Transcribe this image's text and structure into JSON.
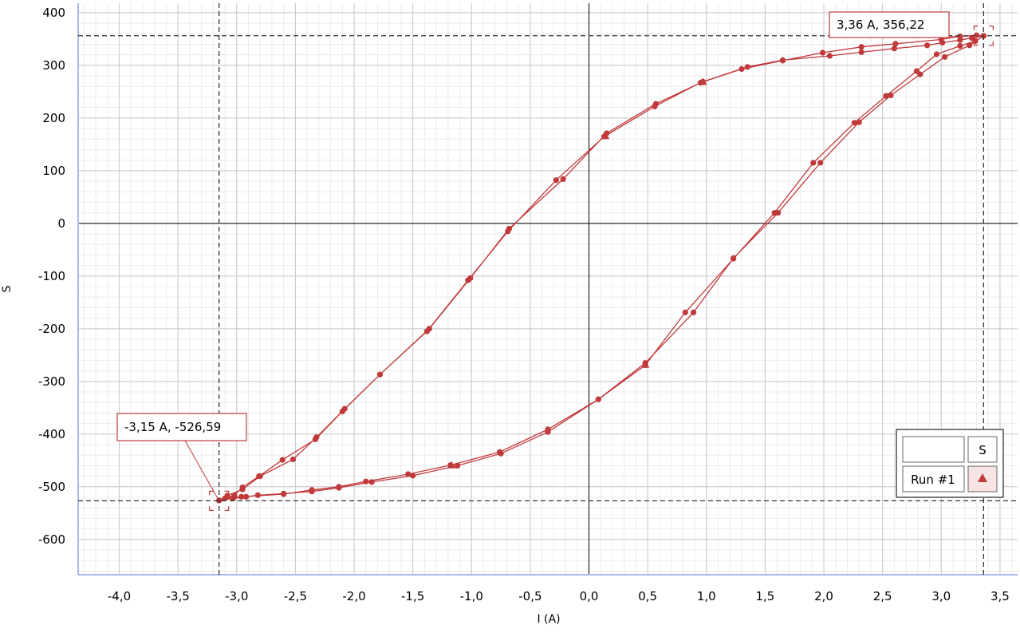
{
  "chart_data": {
    "type": "line",
    "title": "",
    "xlabel": "I (A)",
    "ylabel": "S",
    "xlim": [
      -4.35,
      3.65
    ],
    "ylim": [
      -667,
      418
    ],
    "x_ticks": [
      "-4,0",
      "-3,5",
      "-3,0",
      "-2,5",
      "-2,0",
      "-1,5",
      "-1,0",
      "-0,5",
      "0,0",
      "0,5",
      "1,0",
      "1,5",
      "2,0",
      "2,5",
      "3,0",
      "3,5"
    ],
    "x_tick_values": [
      -4.0,
      -3.5,
      -3.0,
      -2.5,
      -2.0,
      -1.5,
      -1.0,
      -0.5,
      0.0,
      0.5,
      1.0,
      1.5,
      2.0,
      2.5,
      3.0,
      3.5
    ],
    "y_ticks": [
      "400",
      "300",
      "200",
      "100",
      "0",
      "-100",
      "-200",
      "-300",
      "-400",
      "-500",
      "-600"
    ],
    "y_tick_values": [
      400,
      300,
      200,
      100,
      0,
      -100,
      -200,
      -300,
      -400,
      -500,
      -600
    ],
    "grid": true,
    "series_color": "#c0393b",
    "series": [
      {
        "name": "Run #1",
        "points": [
          [
            3.36,
            356
          ],
          [
            3.26,
            352
          ],
          [
            3.16,
            348
          ],
          [
            3.01,
            343
          ],
          [
            2.88,
            338
          ],
          [
            2.6,
            332
          ],
          [
            2.32,
            325
          ],
          [
            2.05,
            318
          ],
          [
            1.65,
            310
          ],
          [
            1.35,
            297
          ],
          [
            0.97,
            269
          ],
          [
            0.57,
            227
          ],
          [
            0.15,
            171
          ],
          [
            -0.22,
            84
          ],
          [
            -0.68,
            -10
          ],
          [
            -1.01,
            -104
          ],
          [
            -1.36,
            -200
          ],
          [
            -1.78,
            -287
          ],
          [
            -2.08,
            -352
          ],
          [
            -2.32,
            -406
          ],
          [
            -2.52,
            -448
          ],
          [
            -2.8,
            -480
          ],
          [
            -2.95,
            -505
          ],
          [
            -3.08,
            -517
          ],
          [
            -3.15,
            -526
          ],
          [
            -3.03,
            -522
          ],
          [
            -2.92,
            -519
          ],
          [
            -2.82,
            -516
          ],
          [
            -2.6,
            -513
          ],
          [
            -2.36,
            -509
          ],
          [
            -2.13,
            -502
          ],
          [
            -1.85,
            -491
          ],
          [
            -1.5,
            -479
          ],
          [
            -1.12,
            -460
          ],
          [
            -0.75,
            -437
          ],
          [
            -0.35,
            -396
          ],
          [
            0.08,
            -334
          ],
          [
            0.48,
            -265
          ],
          [
            0.89,
            -169
          ],
          [
            1.23,
            -66
          ],
          [
            1.61,
            20
          ],
          [
            1.97,
            115
          ],
          [
            2.3,
            192
          ],
          [
            2.57,
            243
          ],
          [
            2.82,
            283
          ],
          [
            3.03,
            316
          ],
          [
            3.24,
            338
          ],
          [
            3.36,
            356
          ],
          [
            3.29,
            346
          ],
          [
            3.16,
            337
          ],
          [
            2.96,
            321
          ],
          [
            2.79,
            289
          ],
          [
            2.53,
            242
          ],
          [
            2.26,
            191
          ],
          [
            1.91,
            115
          ],
          [
            1.58,
            20
          ],
          [
            1.23,
            -67
          ],
          [
            0.82,
            -169
          ],
          [
            0.48,
            -269
          ],
          [
            0.08,
            -334
          ],
          [
            -0.35,
            -391
          ],
          [
            -0.76,
            -434
          ],
          [
            -1.18,
            -459
          ],
          [
            -1.54,
            -476
          ],
          [
            -1.9,
            -490
          ],
          [
            -2.13,
            -500
          ],
          [
            -2.36,
            -506
          ],
          [
            -2.6,
            -514
          ],
          [
            -2.96,
            -519
          ],
          [
            -3.1,
            -522
          ],
          [
            -3.15,
            -526
          ],
          [
            -3.02,
            -516
          ],
          [
            -2.95,
            -501
          ],
          [
            -2.81,
            -480
          ],
          [
            -2.61,
            -449
          ],
          [
            -2.33,
            -410
          ],
          [
            -2.1,
            -357
          ],
          [
            -1.78,
            -287
          ],
          [
            -1.38,
            -205
          ],
          [
            -1.03,
            -108
          ],
          [
            -0.69,
            -15
          ],
          [
            -0.28,
            82
          ],
          [
            0.13,
            165
          ],
          [
            0.56,
            222
          ],
          [
            0.95,
            267
          ],
          [
            1.3,
            293
          ],
          [
            1.65,
            309
          ],
          [
            1.99,
            324
          ],
          [
            2.32,
            335
          ],
          [
            2.61,
            341
          ],
          [
            3.0,
            349
          ],
          [
            3.16,
            355
          ],
          [
            3.3,
            357
          ],
          [
            3.36,
            356
          ]
        ],
        "triangle_points": [
          [
            0.97,
            269
          ],
          [
            0.14,
            166
          ],
          [
            -1.17,
            -459
          ],
          [
            0.48,
            -268
          ]
        ]
      }
    ],
    "crosshair": {
      "max_point": {
        "x": 3.36,
        "y": 356.22,
        "label": "3,36 A, 356,22"
      },
      "min_point": {
        "x": -3.15,
        "y": -526.59,
        "label": "-3,15 A, -526,59"
      }
    },
    "legend": {
      "position": "bottom-right",
      "header_label": "S",
      "entries": [
        {
          "label": "Run #1",
          "marker": "triangle"
        }
      ]
    }
  }
}
